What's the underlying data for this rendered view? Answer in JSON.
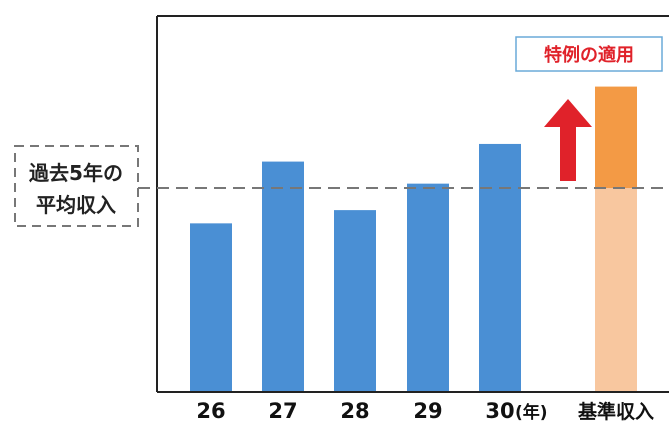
{
  "chart_data": {
    "type": "bar",
    "categories": [
      "26",
      "27",
      "28",
      "29",
      "30"
    ],
    "x_unit": "(年)",
    "values": [
      3.8,
      5.2,
      4.1,
      4.7,
      5.6
    ],
    "reference": {
      "label": "基準収入",
      "value": 6.9,
      "lower_value": 4.6
    },
    "average_line": {
      "label_line1": "過去5年の",
      "label_line2": "平均収入",
      "value": 4.6
    },
    "annotation": "特例の適用",
    "ylim": [
      0,
      8.5
    ],
    "grid": false,
    "colors": {
      "bar": "#4a8fd4",
      "reference_upper": "#f39a45",
      "reference_lower": "#f8c79f",
      "arrow": "#e0222a",
      "annotation_text": "#e0222a",
      "annotation_border": "#6aaad8",
      "dashed": "#777777"
    }
  }
}
